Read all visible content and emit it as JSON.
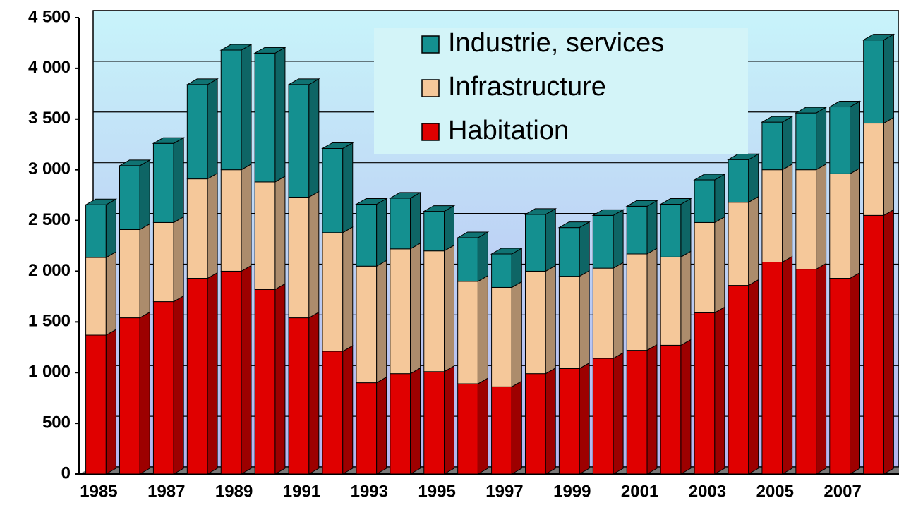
{
  "chart_data": {
    "type": "bar",
    "stacked": true,
    "categories": [
      "1985",
      null,
      "1987",
      null,
      "1989",
      null,
      "1991",
      null,
      "1993",
      null,
      "1995",
      null,
      "1997",
      null,
      "1999",
      null,
      "2001",
      null,
      "2003",
      null,
      "2005",
      null,
      "2007",
      null
    ],
    "series": [
      {
        "name": "Habitation",
        "color": "#e00000",
        "values": [
          1370,
          1540,
          1700,
          1930,
          2000,
          1820,
          1540,
          1210,
          900,
          990,
          1010,
          890,
          860,
          990,
          1040,
          1140,
          1220,
          1270,
          1590,
          1860,
          2090,
          2020,
          1930,
          2550
        ]
      },
      {
        "name": "Infrastructure",
        "color": "#f5c89a",
        "values": [
          765,
          870,
          780,
          980,
          1000,
          1060,
          1190,
          1170,
          1150,
          1230,
          1190,
          1010,
          980,
          1010,
          910,
          890,
          950,
          870,
          890,
          820,
          910,
          980,
          1030,
          910
        ]
      },
      {
        "name": "Industrie, services",
        "color": "#149090",
        "values": [
          520,
          630,
          780,
          930,
          1180,
          1270,
          1110,
          830,
          610,
          500,
          390,
          430,
          330,
          560,
          480,
          520,
          470,
          520,
          420,
          420,
          470,
          560,
          660,
          820
        ]
      }
    ],
    "ylim": [
      0,
      4500
    ],
    "yticks": [
      0,
      500,
      {
        "value": 1000,
        "label": "1 000"
      },
      {
        "value": 1500,
        "label": "1 500"
      },
      {
        "value": 2000,
        "label": "2 000"
      },
      {
        "value": 2500,
        "label": "2 500"
      },
      {
        "value": 3000,
        "label": "3 000"
      },
      {
        "value": 3500,
        "label": "3 500"
      },
      {
        "value": 4000,
        "label": "4 000"
      },
      {
        "value": 4500,
        "label": "4 500"
      }
    ],
    "grid": true
  }
}
